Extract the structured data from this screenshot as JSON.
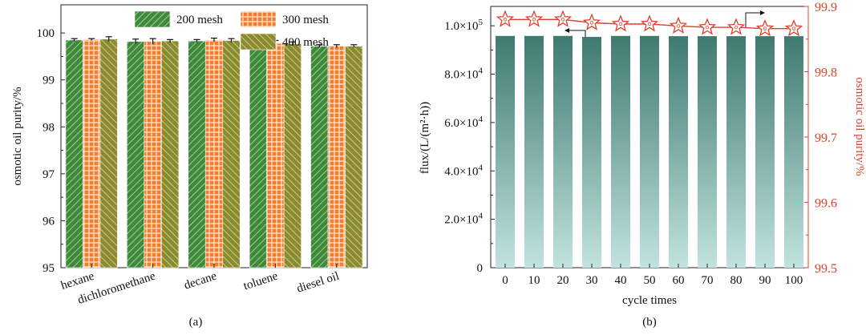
{
  "chart_data": [
    {
      "type": "bar",
      "panel_label": "(a)",
      "ylabel": "osmotic oil purity/%",
      "ylim": [
        95,
        100.6
      ],
      "yticks": [
        95,
        96,
        97,
        98,
        99,
        100
      ],
      "categories": [
        "hexane",
        "dichloromethane",
        "decane",
        "toluene",
        "diesel oil"
      ],
      "series": [
        {
          "name": "200 mesh",
          "values": [
            99.85,
            99.82,
            99.83,
            99.76,
            99.72
          ],
          "errors": [
            0.03,
            0.05,
            0.03,
            0.03,
            0.03
          ],
          "color": "#3f8a3a"
        },
        {
          "name": "300 mesh",
          "values": [
            99.86,
            99.82,
            99.85,
            99.78,
            99.72
          ],
          "errors": [
            0.02,
            0.06,
            0.04,
            0.06,
            0.03
          ],
          "color": "#f08030"
        },
        {
          "name": "400 mesh",
          "values": [
            99.87,
            99.83,
            99.84,
            99.77,
            99.72
          ],
          "errors": [
            0.05,
            0.03,
            0.04,
            0.04,
            0.03
          ],
          "color": "#8a8a30"
        }
      ],
      "legend_position": "top-right"
    },
    {
      "type": "bar",
      "panel_label": "(b)",
      "xlabel": "cycle times",
      "ylabel": "flux/(L/(m²·h))",
      "ylim": [
        0,
        108000
      ],
      "yticks": [
        0,
        20000,
        40000,
        60000,
        80000,
        100000
      ],
      "ytick_labels": [
        "0",
        "2.0×10",
        "4.0×10",
        "6.0×10",
        "8.0×10",
        "1.0×10"
      ],
      "ytick_exponents": [
        "",
        "4",
        "4",
        "4",
        "4",
        "5"
      ],
      "categories": [
        "0",
        "10",
        "20",
        "30",
        "40",
        "50",
        "60",
        "70",
        "80",
        "90",
        "100"
      ],
      "flux_values": [
        95800,
        95800,
        95800,
        95400,
        95800,
        95800,
        95700,
        95700,
        95700,
        95700,
        95700
      ],
      "bar_color_top": "#3f7a70",
      "bar_color_bottom": "#c2e3e0",
      "y2label": "osmotic oil purity/%",
      "y2lim": [
        99.5,
        99.9
      ],
      "y2ticks": [
        99.5,
        99.6,
        99.7,
        99.8,
        99.9
      ],
      "y2tick_labels": [
        "99.5",
        "99.6",
        "99.7",
        "99.8",
        "99.9"
      ],
      "purity_values": [
        99.88,
        99.88,
        99.88,
        99.875,
        99.873,
        99.873,
        99.87,
        99.868,
        99.868,
        99.866,
        99.866
      ],
      "purity_color": "#e0402a"
    }
  ]
}
